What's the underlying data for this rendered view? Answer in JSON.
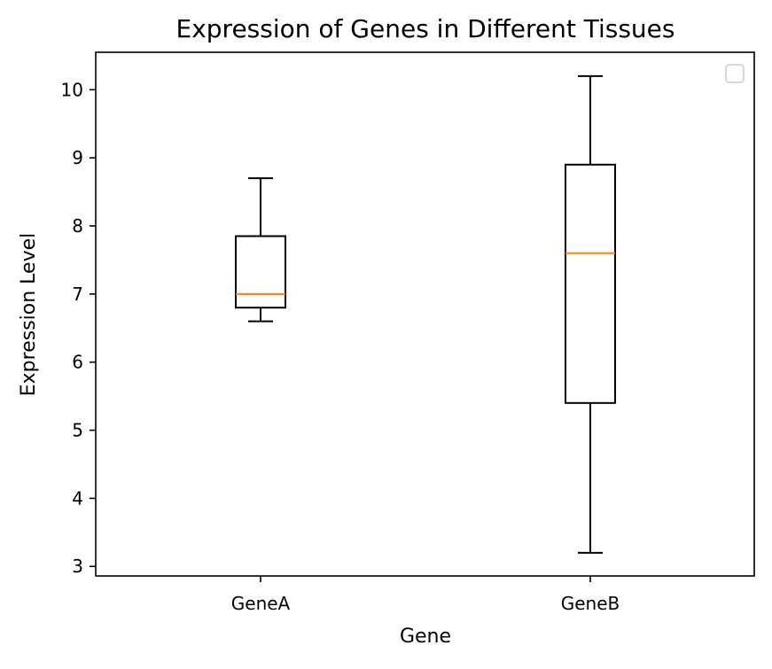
{
  "chart_data": {
    "type": "box",
    "title": "Expression of Genes in Different Tissues",
    "xlabel": "Gene",
    "ylabel": "Expression Level",
    "categories": [
      "GeneA",
      "GeneB"
    ],
    "ylim": [
      2.86,
      10.55
    ],
    "yticks": [
      3,
      4,
      5,
      6,
      7,
      8,
      9,
      10
    ],
    "grid": false,
    "legend": {
      "placement": "top-right",
      "entries": []
    },
    "boxes": [
      {
        "name": "GeneA",
        "whisker_low": 6.6,
        "q1": 6.8,
        "median": 7.0,
        "q3": 7.85,
        "whisker_high": 8.7
      },
      {
        "name": "GeneB",
        "whisker_low": 3.2,
        "q1": 5.4,
        "median": 7.6,
        "q3": 8.9,
        "whisker_high": 10.2
      }
    ],
    "colors": {
      "box_edge": "#000000",
      "median": "#ff7f0e",
      "axes": "#000000",
      "legend_edge": "#cccccc"
    }
  }
}
